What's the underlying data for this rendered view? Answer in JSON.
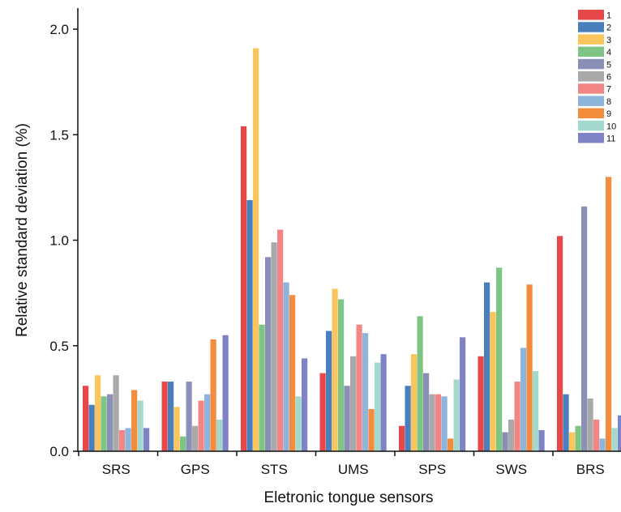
{
  "chart_data": {
    "type": "bar",
    "title": "",
    "xlabel": "Eletronic tongue sensors",
    "ylabel": "Relative standard deviation (%)",
    "ylim": [
      0,
      2.1
    ],
    "yticks": [
      "0.0",
      "0.5",
      "1.0",
      "1.5",
      "2.0"
    ],
    "grid": false,
    "legend_position": "top-right",
    "categories": [
      "SRS",
      "GPS",
      "STS",
      "UMS",
      "SPS",
      "SWS",
      "BRS"
    ],
    "series": [
      {
        "name": "1",
        "color": "#e8474a",
        "values": [
          0.31,
          0.33,
          1.54,
          0.37,
          0.12,
          0.45,
          1.02
        ]
      },
      {
        "name": "2",
        "color": "#4a7fbd",
        "values": [
          0.22,
          0.33,
          1.19,
          0.57,
          0.31,
          0.8,
          0.27
        ]
      },
      {
        "name": "3",
        "color": "#f9c55c",
        "values": [
          0.36,
          0.21,
          1.91,
          0.77,
          0.46,
          0.66,
          0.09
        ]
      },
      {
        "name": "4",
        "color": "#7ec484",
        "values": [
          0.26,
          0.07,
          0.6,
          0.72,
          0.64,
          0.87,
          0.12
        ]
      },
      {
        "name": "5",
        "color": "#8a8fb5",
        "values": [
          0.27,
          0.33,
          0.92,
          0.31,
          0.37,
          0.09,
          1.16
        ]
      },
      {
        "name": "6",
        "color": "#a9a9a9",
        "values": [
          0.36,
          0.12,
          0.99,
          0.45,
          0.27,
          0.15,
          0.25
        ]
      },
      {
        "name": "7",
        "color": "#f38585",
        "values": [
          0.1,
          0.24,
          1.05,
          0.6,
          0.27,
          0.33,
          0.15
        ]
      },
      {
        "name": "8",
        "color": "#8db5dc",
        "values": [
          0.11,
          0.27,
          0.8,
          0.56,
          0.26,
          0.49,
          0.06
        ]
      },
      {
        "name": "9",
        "color": "#f38c3c",
        "values": [
          0.29,
          0.53,
          0.74,
          0.2,
          0.06,
          0.79,
          1.3
        ]
      },
      {
        "name": "10",
        "color": "#a3d8cc",
        "values": [
          0.24,
          0.15,
          0.26,
          0.42,
          0.34,
          0.38,
          0.11
        ]
      },
      {
        "name": "11",
        "color": "#7f82c4",
        "values": [
          0.11,
          0.55,
          0.44,
          0.46,
          0.54,
          0.1,
          0.17
        ]
      }
    ]
  }
}
